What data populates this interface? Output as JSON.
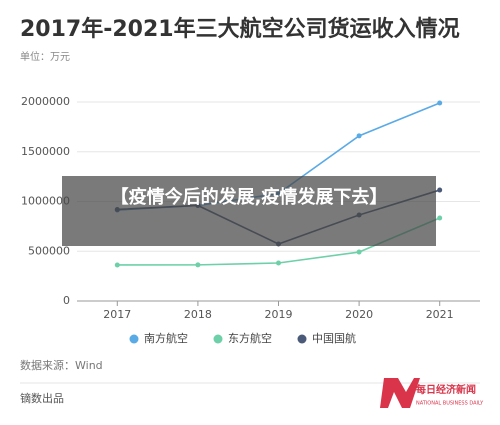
{
  "chart_data": {
    "type": "line",
    "title": "2017年-2021年三大航空公司货运收入情况",
    "subtitle": "单位：万元",
    "categories": [
      "2017",
      "2018",
      "2019",
      "2020",
      "2021"
    ],
    "series": [
      {
        "name": "南方航空",
        "color": "#5aaae6",
        "values": [
          914000,
          960000,
          1080000,
          1660000,
          1990000
        ]
      },
      {
        "name": "东方航空",
        "color": "#6dd0a8",
        "values": [
          362000,
          363000,
          382000,
          492000,
          834000
        ]
      },
      {
        "name": "中国国航",
        "color": "#4a5a78",
        "values": [
          920000,
          960000,
          573000,
          864000,
          1115000
        ]
      }
    ],
    "ylim": [
      0,
      2000000
    ],
    "yticks": [
      0,
      500000,
      1000000,
      1500000,
      2000000
    ],
    "grid": true,
    "legend": "bottom"
  },
  "overlay": {
    "text": "【疫情今后的发展,疫情发展下去】"
  },
  "footer": {
    "source": "数据来源：Wind",
    "producer": "镝数出品",
    "logo_cn": "每日经济新闻",
    "logo_en": "NATIONAL BUSINESS DAILY"
  }
}
